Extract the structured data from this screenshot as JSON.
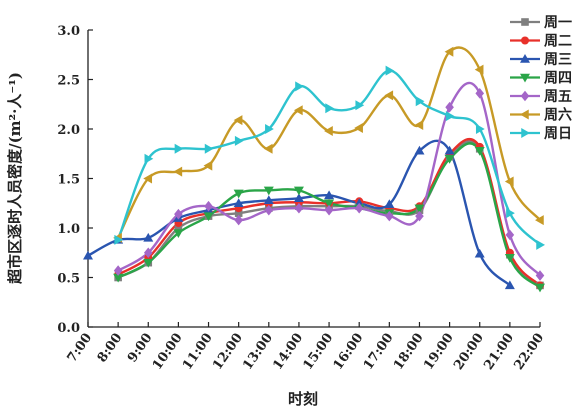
{
  "chart_data": {
    "type": "line",
    "xlabel": "时刻",
    "ylabel": "超市区逐时人员密度/(m²·人⁻¹)",
    "x_ticks": [
      "7:00",
      "8:00",
      "9:00",
      "10:00",
      "11:00",
      "12:00",
      "13:00",
      "14:00",
      "15:00",
      "16:00",
      "17:00",
      "18:00",
      "19:00",
      "20:00",
      "21:00",
      "22:00"
    ],
    "y_ticks": [
      "0.0",
      "0.5",
      "1.0",
      "1.5",
      "2.0",
      "2.5",
      "3.0"
    ],
    "xlim": [
      7,
      22
    ],
    "ylim": [
      0,
      3.0
    ],
    "grid": false,
    "legend_position": "top-right",
    "series": [
      {
        "name": "周一",
        "color": "#7f7f7f",
        "marker": "square",
        "points": [
          [
            8,
            0.5
          ],
          [
            9,
            0.65
          ],
          [
            10,
            1.0
          ],
          [
            11,
            1.12
          ],
          [
            12,
            1.15
          ],
          [
            13,
            1.2
          ],
          [
            14,
            1.22
          ],
          [
            15,
            1.22
          ],
          [
            16,
            1.22
          ],
          [
            17,
            1.17
          ],
          [
            18,
            1.18
          ],
          [
            19,
            1.72
          ],
          [
            20,
            1.8
          ],
          [
            21,
            0.73
          ],
          [
            22,
            0.42
          ]
        ]
      },
      {
        "name": "周二",
        "color": "#e8302a",
        "marker": "circle",
        "points": [
          [
            8,
            0.53
          ],
          [
            9,
            0.7
          ],
          [
            10,
            1.05
          ],
          [
            11,
            1.15
          ],
          [
            12,
            1.2
          ],
          [
            13,
            1.25
          ],
          [
            14,
            1.26
          ],
          [
            15,
            1.25
          ],
          [
            16,
            1.27
          ],
          [
            17,
            1.2
          ],
          [
            18,
            1.22
          ],
          [
            19,
            1.75
          ],
          [
            20,
            1.82
          ],
          [
            21,
            0.75
          ],
          [
            22,
            0.42
          ]
        ]
      },
      {
        "name": "周三",
        "color": "#2a55b0",
        "marker": "triangle-up",
        "points": [
          [
            7,
            0.72
          ],
          [
            8,
            0.88
          ],
          [
            9,
            0.9
          ],
          [
            10,
            1.1
          ],
          [
            11,
            1.18
          ],
          [
            12,
            1.25
          ],
          [
            13,
            1.28
          ],
          [
            14,
            1.3
          ],
          [
            15,
            1.33
          ],
          [
            16,
            1.25
          ],
          [
            17,
            1.24
          ],
          [
            18,
            1.78
          ],
          [
            19,
            1.78
          ],
          [
            20,
            0.74
          ],
          [
            21,
            0.42
          ]
        ]
      },
      {
        "name": "周四",
        "color": "#2aa548",
        "marker": "triangle-down",
        "points": [
          [
            8,
            0.5
          ],
          [
            9,
            0.65
          ],
          [
            10,
            0.95
          ],
          [
            11,
            1.12
          ],
          [
            12,
            1.35
          ],
          [
            13,
            1.38
          ],
          [
            14,
            1.38
          ],
          [
            15,
            1.25
          ],
          [
            16,
            1.2
          ],
          [
            17,
            1.15
          ],
          [
            18,
            1.2
          ],
          [
            19,
            1.7
          ],
          [
            20,
            1.78
          ],
          [
            21,
            0.7
          ],
          [
            22,
            0.4
          ]
        ]
      },
      {
        "name": "周五",
        "color": "#a466c8",
        "marker": "diamond",
        "points": [
          [
            8,
            0.57
          ],
          [
            9,
            0.75
          ],
          [
            10,
            1.14
          ],
          [
            11,
            1.22
          ],
          [
            12,
            1.08
          ],
          [
            13,
            1.18
          ],
          [
            14,
            1.2
          ],
          [
            15,
            1.18
          ],
          [
            16,
            1.2
          ],
          [
            17,
            1.12
          ],
          [
            18,
            1.12
          ],
          [
            19,
            2.22
          ],
          [
            20,
            2.36
          ],
          [
            21,
            0.93
          ],
          [
            22,
            0.52
          ]
        ]
      },
      {
        "name": "周六",
        "color": "#c79a26",
        "marker": "triangle-left",
        "points": [
          [
            8,
            0.9
          ],
          [
            9,
            1.5
          ],
          [
            10,
            1.57
          ],
          [
            11,
            1.63
          ],
          [
            12,
            2.09
          ],
          [
            13,
            1.8
          ],
          [
            14,
            2.19
          ],
          [
            15,
            1.98
          ],
          [
            16,
            2.01
          ],
          [
            17,
            2.34
          ],
          [
            18,
            2.04
          ],
          [
            19,
            2.78
          ],
          [
            20,
            2.6
          ],
          [
            21,
            1.47
          ],
          [
            22,
            1.08
          ]
        ]
      },
      {
        "name": "周日",
        "color": "#2ec3cf",
        "marker": "triangle-right",
        "points": [
          [
            8,
            0.88
          ],
          [
            9,
            1.7
          ],
          [
            10,
            1.8
          ],
          [
            11,
            1.8
          ],
          [
            12,
            1.88
          ],
          [
            13,
            2.0
          ],
          [
            14,
            2.43
          ],
          [
            15,
            2.21
          ],
          [
            16,
            2.24
          ],
          [
            17,
            2.59
          ],
          [
            18,
            2.28
          ],
          [
            19,
            2.13
          ],
          [
            20,
            2.0
          ],
          [
            21,
            1.15
          ],
          [
            22,
            0.83
          ]
        ]
      }
    ]
  }
}
